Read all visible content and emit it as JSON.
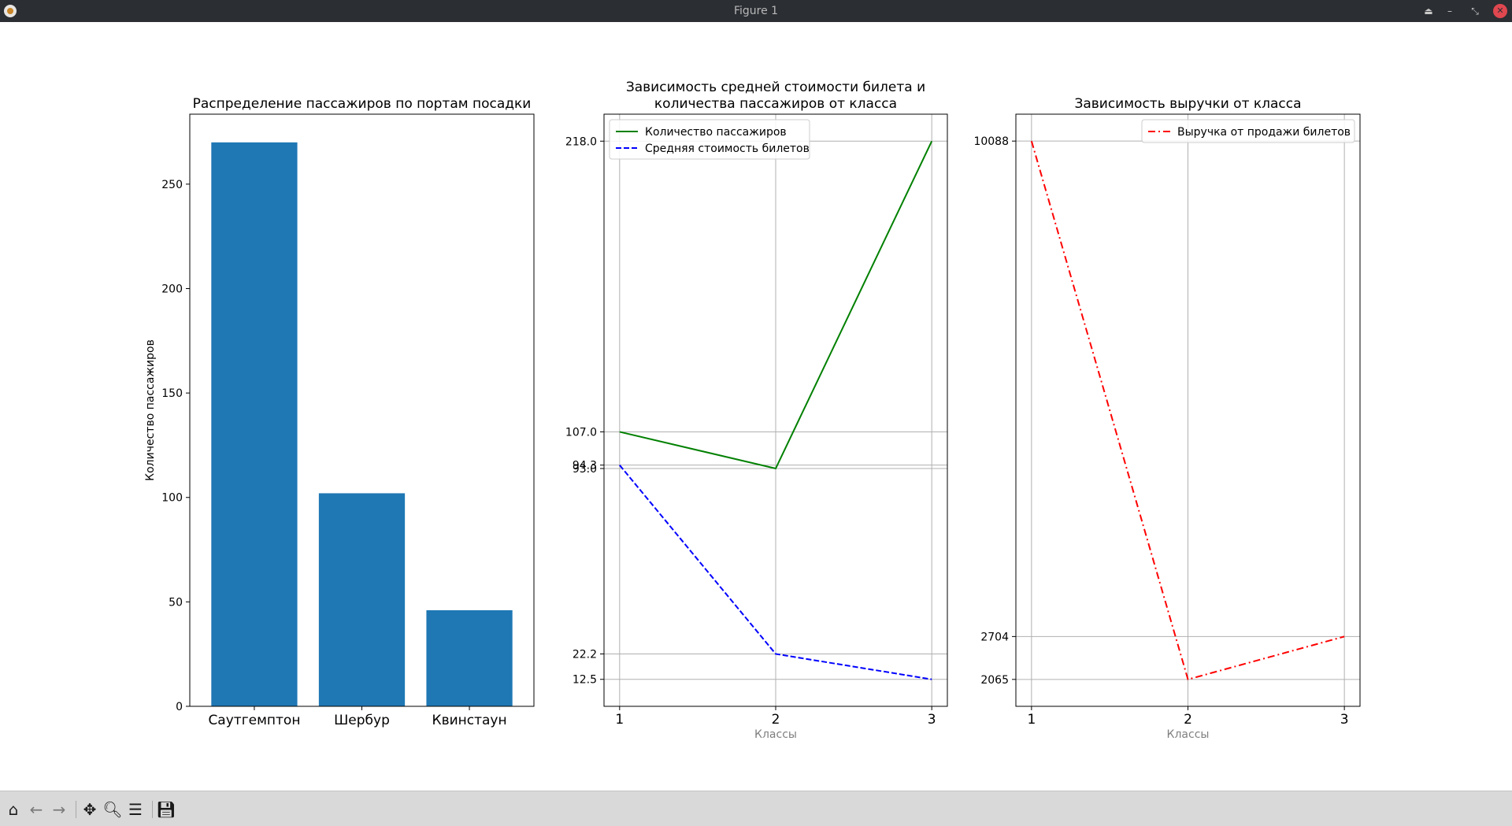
{
  "window": {
    "title": "Figure 1",
    "buttons": {
      "keep_above": "⏏",
      "minimize": "–",
      "maximize": "⤡",
      "close": "✕"
    }
  },
  "toolbar": [
    {
      "name": "home-icon",
      "glyph": "⌂"
    },
    {
      "name": "back-arrow-icon",
      "glyph": "←"
    },
    {
      "name": "forward-arrow-icon",
      "glyph": "→"
    },
    {
      "name": "pan-icon",
      "glyph": "✥"
    },
    {
      "name": "zoom-icon",
      "glyph": "🔍︎"
    },
    {
      "name": "subplots-icon",
      "glyph": "☰"
    },
    {
      "name": "save-icon",
      "glyph": "💾︎"
    }
  ],
  "chart_data": [
    {
      "type": "bar",
      "title": "Распределение пассажиров по портам посадки",
      "xlabel": "",
      "ylabel": "Количество пассажиров",
      "categories": [
        "Саутгемптон",
        "Шербур",
        "Квинстаун"
      ],
      "values": [
        270,
        102,
        46
      ],
      "ylim": [
        0,
        283.5
      ],
      "yticks": [
        0,
        50,
        100,
        150,
        200,
        250
      ],
      "color": "#1f77b4",
      "grid": false
    },
    {
      "type": "line",
      "title": "Зависимость средней стоимости билета и\nколичества пассажиров от класса",
      "xlabel": "Классы",
      "ylabel": "",
      "x": [
        1,
        2,
        3
      ],
      "series": [
        {
          "name": "Количество пассажиров",
          "values": [
            107.0,
            93.0,
            218.0
          ],
          "color": "#008000",
          "style": "solid"
        },
        {
          "name": "Средняя стоимость билетов",
          "values": [
            94.3,
            22.2,
            12.5
          ],
          "color": "#0000ff",
          "style": "dashed"
        }
      ],
      "yticks": [
        "218.0",
        "107.0",
        "94.3",
        "93.0",
        "22.2",
        "12.5"
      ],
      "ylim": [
        2.2,
        228.3
      ],
      "xticks": [
        "1",
        "2",
        "3"
      ],
      "grid": true,
      "legend": "upper left"
    },
    {
      "type": "line",
      "title": "Зависимость выручки от класса",
      "xlabel": "Классы",
      "ylabel": "",
      "x": [
        1,
        2,
        3
      ],
      "series": [
        {
          "name": "Выручка от продажи билетов",
          "values": [
            10088,
            2065,
            2704
          ],
          "color": "#ff0000",
          "style": "dashdot"
        }
      ],
      "yticks": [
        "10088",
        "2704",
        "2065"
      ],
      "ylim": [
        1664,
        10489
      ],
      "xticks": [
        "1",
        "2",
        "3"
      ],
      "grid": true,
      "legend": "upper right"
    }
  ]
}
